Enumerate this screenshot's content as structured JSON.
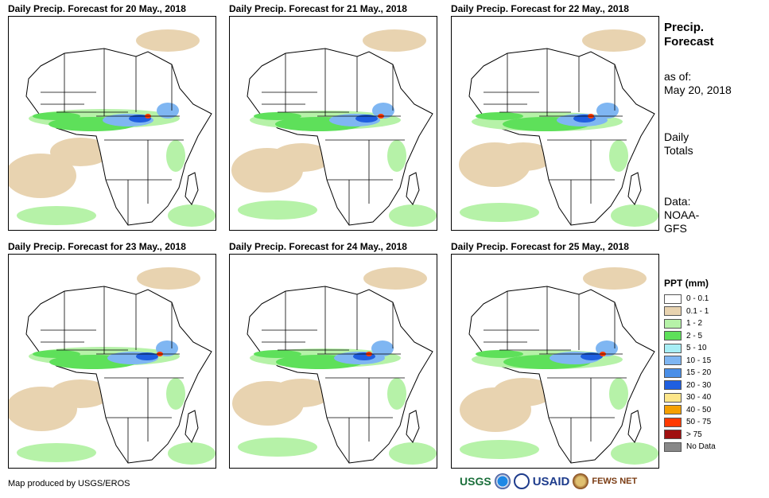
{
  "panels": [
    {
      "title": "Daily Precip. Forecast for 20 May., 2018"
    },
    {
      "title": "Daily Precip. Forecast for 21 May., 2018"
    },
    {
      "title": "Daily Precip. Forecast for 22 May., 2018"
    },
    {
      "title": "Daily Precip. Forecast for 23 May., 2018"
    },
    {
      "title": "Daily Precip. Forecast for 24 May., 2018"
    },
    {
      "title": "Daily Precip. Forecast for 25 May., 2018"
    }
  ],
  "side": {
    "title_line1": "Precip.",
    "title_line2": "Forecast",
    "asof_label": "as of:",
    "asof_date": "May 20, 2018",
    "totals_line1": "Daily",
    "totals_line2": "Totals",
    "data_line1": "Data:",
    "data_line2": "NOAA-",
    "data_line3": "GFS"
  },
  "legend": {
    "title": "PPT (mm)",
    "items": [
      {
        "label": "0 - 0.1",
        "color": "#ffffff"
      },
      {
        "label": "0.1 - 1",
        "color": "#e8d3b0"
      },
      {
        "label": "1 - 2",
        "color": "#b6f2a8"
      },
      {
        "label": "2 - 5",
        "color": "#5ee05a"
      },
      {
        "label": "5 - 10",
        "color": "#a7eef5"
      },
      {
        "label": "10 - 15",
        "color": "#7fb6f2"
      },
      {
        "label": "15 - 20",
        "color": "#4a8fe8"
      },
      {
        "label": "20 - 30",
        "color": "#1f5fe0"
      },
      {
        "label": "30 - 40",
        "color": "#fde68a"
      },
      {
        "label": "40 - 50",
        "color": "#f5a000"
      },
      {
        "label": "50 - 75",
        "color": "#ff3a00"
      },
      {
        "label": "> 75",
        "color": "#a01010"
      },
      {
        "label": "No Data",
        "color": "#888888"
      }
    ]
  },
  "footer": {
    "credit": "Map produced by USGS/EROS",
    "logos": {
      "usgs": "USGS",
      "usaid": "USAID",
      "fews": "FEWS NET"
    }
  }
}
